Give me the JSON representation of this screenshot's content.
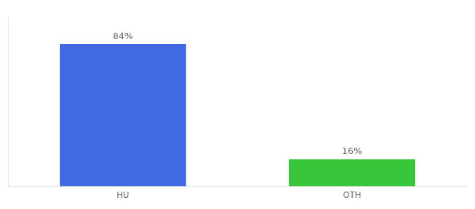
{
  "chart_data": {
    "type": "bar",
    "categories": [
      "HU",
      "OTH"
    ],
    "values": [
      84,
      16
    ],
    "value_labels": [
      "84%",
      "16%"
    ],
    "colors": [
      "#4169e1",
      "#3ac63a"
    ],
    "ylim": [
      0,
      100
    ],
    "grid": false,
    "data_labels": true,
    "tick_labels": "x"
  }
}
